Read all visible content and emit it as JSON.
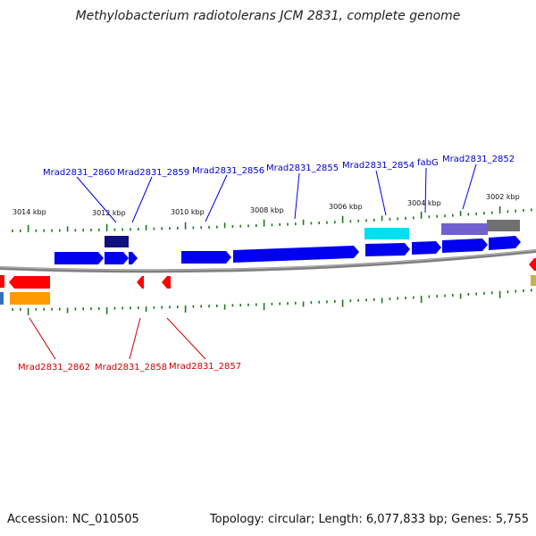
{
  "title": "Methylobacterium radiotolerans JCM 2831, complete genome",
  "footer": {
    "accession": "Accession: NC_010505",
    "summary": "Topology: circular; Length: 6,077,833 bp; Genes: 5,755"
  },
  "colors": {
    "backbone": "#808080",
    "tick": "#1a7a1a",
    "forward_gene": "#0000ee",
    "reverse_gene": "#ff0000",
    "forward_label": "#0000cc",
    "reverse_label": "#cc0000"
  },
  "scale": {
    "ticks": [
      "3014 kbp",
      "3012 kbp",
      "3010 kbp",
      "3008 kbp",
      "3006 kbp",
      "3004 kbp",
      "3002 kbp"
    ]
  },
  "forward_labels": [
    "Mrad2831_2860",
    "Mrad2831_2859",
    "Mrad2831_2856",
    "Mrad2831_2855",
    "Mrad2831_2854",
    "fabG",
    "Mrad2831_2852"
  ],
  "reverse_labels": [
    "Mrad2831_2862",
    "Mrad2831_2858",
    "Mrad2831_2857"
  ]
}
